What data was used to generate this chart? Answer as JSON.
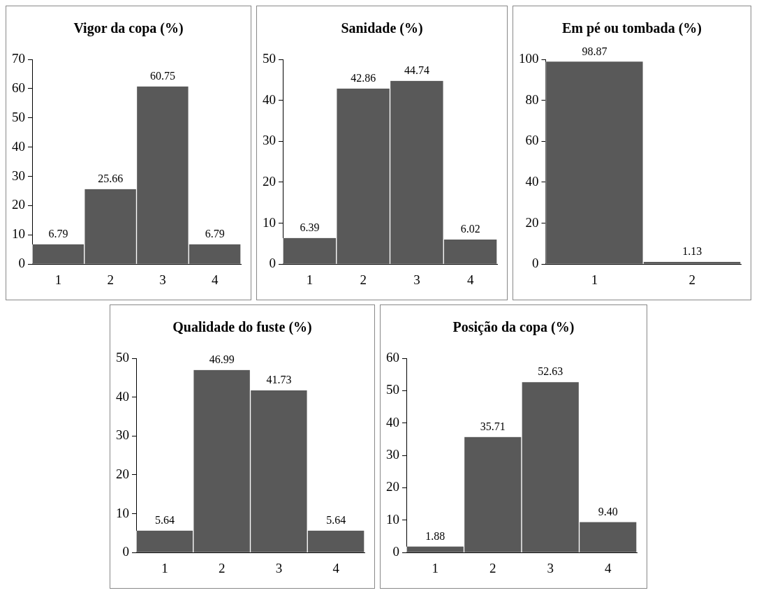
{
  "chart_data": [
    {
      "type": "bar",
      "title": "Vigor da copa (%)",
      "categories": [
        "1",
        "2",
        "3",
        "4"
      ],
      "values": [
        6.79,
        25.66,
        60.75,
        6.79
      ],
      "value_labels": [
        "6.79",
        "25.66",
        "60.75",
        "6.79"
      ],
      "color": "#595959",
      "ylim": [
        0,
        70
      ],
      "yticks": [
        0,
        10,
        20,
        30,
        40,
        50,
        60,
        70
      ],
      "grid": false,
      "legend": false
    },
    {
      "type": "bar",
      "title": "Sanidade (%)",
      "categories": [
        "1",
        "2",
        "3",
        "4"
      ],
      "values": [
        6.39,
        42.86,
        44.74,
        6.02
      ],
      "value_labels": [
        "6.39",
        "42.86",
        "44.74",
        "6.02"
      ],
      "color": "#595959",
      "ylim": [
        0,
        50
      ],
      "yticks": [
        0,
        10,
        20,
        30,
        40,
        50
      ],
      "grid": false,
      "legend": false
    },
    {
      "type": "bar",
      "title": "Em pé ou tombada (%)",
      "categories": [
        "1",
        "2"
      ],
      "values": [
        98.87,
        1.13
      ],
      "value_labels": [
        "98.87",
        "1.13"
      ],
      "color": "#595959",
      "ylim": [
        0,
        100
      ],
      "yticks": [
        0,
        20,
        40,
        60,
        80,
        100
      ],
      "grid": false,
      "legend": false
    },
    {
      "type": "bar",
      "title": "Qualidade do fuste (%)",
      "categories": [
        "1",
        "2",
        "3",
        "4"
      ],
      "values": [
        5.64,
        46.99,
        41.73,
        5.64
      ],
      "value_labels": [
        "5.64",
        "46.99",
        "41.73",
        "5.64"
      ],
      "color": "#595959",
      "ylim": [
        0,
        50
      ],
      "yticks": [
        0,
        10,
        20,
        30,
        40,
        50
      ],
      "grid": false,
      "legend": false
    },
    {
      "type": "bar",
      "title": "Posição da copa (%)",
      "categories": [
        "1",
        "2",
        "3",
        "4"
      ],
      "values": [
        1.88,
        35.71,
        52.63,
        9.4
      ],
      "value_labels": [
        "1.88",
        "35.71",
        "52.63",
        "9.40"
      ],
      "color": "#595959",
      "ylim": [
        0,
        60
      ],
      "yticks": [
        0,
        10,
        20,
        30,
        40,
        50,
        60
      ],
      "grid": false,
      "legend": false
    }
  ]
}
